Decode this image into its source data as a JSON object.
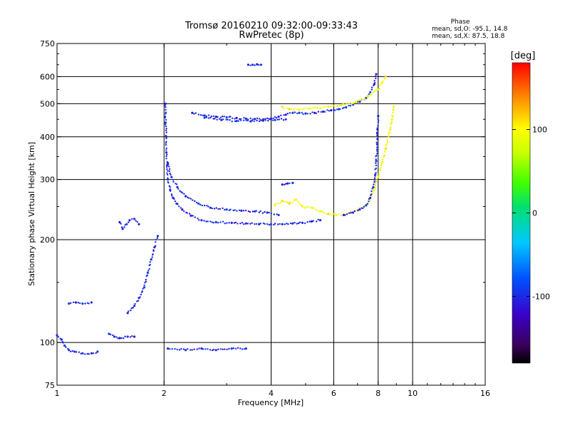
{
  "header": {
    "title_line1": "Tromsø 20160210 09:32:00-09:33:43",
    "title_line2": "RwPretec (8p)"
  },
  "phase_info": {
    "heading": "Phase",
    "line_o": "mean, sd,O: -95.1, 14.8",
    "line_x": "mean, sd,X:  87.5, 18.8"
  },
  "colorbar": {
    "unit_label": "[deg]",
    "range": [
      -180,
      180
    ],
    "ticks": [
      "100",
      "0",
      "-100"
    ],
    "tick_values": [
      100,
      0,
      -100
    ]
  },
  "chart_data": {
    "type": "scatter",
    "xlabel": "Frequency [MHz]",
    "ylabel": "Stationary phase Virtual Height [km]",
    "x_scale": "log",
    "y_scale": "log",
    "xlim": [
      1,
      16
    ],
    "ylim": [
      75,
      750
    ],
    "x_ticks": [
      {
        "value": 1,
        "label": "1"
      },
      {
        "value": 2,
        "label": "2"
      },
      {
        "value": 4,
        "label": "4"
      },
      {
        "value": 6,
        "label": "6"
      },
      {
        "value": 8,
        "label": "8"
      },
      {
        "value": 10,
        "label": "10"
      },
      {
        "value": 16,
        "label": "16"
      }
    ],
    "y_ticks": [
      {
        "value": 75,
        "label": "75"
      },
      {
        "value": 100,
        "label": "100"
      },
      {
        "value": 200,
        "label": "200"
      },
      {
        "value": 300,
        "label": "300"
      },
      {
        "value": 400,
        "label": "400"
      },
      {
        "value": 500,
        "label": "500"
      },
      {
        "value": 600,
        "label": "600"
      },
      {
        "value": 750,
        "label": "750"
      }
    ],
    "x_gridlines": [
      2,
      4,
      6,
      8,
      10
    ],
    "y_gridlines": [
      100,
      200,
      300,
      400,
      500,
      600
    ],
    "grid": true,
    "color_scale": "phase_deg",
    "traces": [
      {
        "phase": -100,
        "points": [
          [
            2.02,
            500
          ],
          [
            2.02,
            440
          ],
          [
            2.03,
            400
          ],
          [
            2.03,
            360
          ],
          [
            2.04,
            330
          ],
          [
            2.05,
            300
          ],
          [
            2.08,
            280
          ],
          [
            2.12,
            265
          ],
          [
            2.17,
            255
          ],
          [
            2.25,
            245
          ],
          [
            2.38,
            235
          ],
          [
            2.55,
            228
          ],
          [
            2.8,
            225
          ],
          [
            3.1,
            224
          ],
          [
            3.4,
            223
          ],
          [
            3.7,
            222
          ],
          [
            4.0,
            222
          ],
          [
            4.3,
            222
          ],
          [
            4.6,
            223
          ],
          [
            4.9,
            224
          ],
          [
            5.2,
            226
          ],
          [
            5.5,
            228
          ]
        ]
      },
      {
        "phase": -100,
        "points": [
          [
            2.05,
            335
          ],
          [
            2.1,
            305
          ],
          [
            2.18,
            285
          ],
          [
            2.3,
            268
          ],
          [
            2.5,
            255
          ],
          [
            2.7,
            248
          ],
          [
            3.0,
            245
          ],
          [
            3.3,
            243
          ],
          [
            3.6,
            242
          ],
          [
            3.9,
            240
          ],
          [
            4.2,
            236
          ]
        ]
      },
      {
        "phase": 100,
        "points": [
          [
            4.1,
            252
          ],
          [
            4.3,
            260
          ],
          [
            4.5,
            255
          ],
          [
            4.7,
            262
          ],
          [
            4.9,
            250
          ],
          [
            5.2,
            248
          ],
          [
            5.5,
            242
          ],
          [
            5.8,
            238
          ],
          [
            6.1,
            236
          ],
          [
            6.4,
            237
          ],
          [
            6.7,
            240
          ],
          [
            7.0,
            244
          ],
          [
            7.3,
            250
          ],
          [
            7.6,
            262
          ],
          [
            7.8,
            280
          ],
          [
            8.0,
            305
          ],
          [
            8.2,
            335
          ],
          [
            8.4,
            370
          ],
          [
            8.6,
            410
          ],
          [
            8.75,
            450
          ],
          [
            8.85,
            490
          ]
        ]
      },
      {
        "phase": -100,
        "points": [
          [
            6.4,
            236
          ],
          [
            6.8,
            240
          ],
          [
            7.1,
            245
          ],
          [
            7.4,
            252
          ],
          [
            7.6,
            265
          ],
          [
            7.75,
            285
          ],
          [
            7.85,
            310
          ],
          [
            7.9,
            340
          ],
          [
            7.95,
            380
          ],
          [
            7.97,
            420
          ],
          [
            8.0,
            460
          ]
        ]
      },
      {
        "phase": -100,
        "points": [
          [
            2.4,
            470
          ],
          [
            2.6,
            462
          ],
          [
            2.8,
            458
          ],
          [
            3.0,
            456
          ],
          [
            3.2,
            454
          ],
          [
            3.4,
            452
          ],
          [
            3.6,
            451
          ],
          [
            3.8,
            450
          ],
          [
            4.0,
            452
          ],
          [
            4.2,
            458
          ],
          [
            4.4,
            464
          ],
          [
            4.6,
            470
          ],
          [
            4.8,
            470
          ],
          [
            5.0,
            468
          ],
          [
            5.3,
            470
          ],
          [
            5.6,
            474
          ],
          [
            5.9,
            478
          ],
          [
            6.2,
            482
          ],
          [
            6.5,
            488
          ],
          [
            6.8,
            497
          ],
          [
            7.1,
            507
          ],
          [
            7.4,
            520
          ],
          [
            7.6,
            540
          ],
          [
            7.8,
            570
          ],
          [
            7.9,
            610
          ]
        ]
      },
      {
        "phase": -100,
        "points": [
          [
            2.6,
            455
          ],
          [
            2.9,
            448
          ],
          [
            3.2,
            445
          ],
          [
            3.5,
            444
          ],
          [
            3.8,
            446
          ],
          [
            4.1,
            448
          ],
          [
            4.4,
            450
          ]
        ]
      },
      {
        "phase": 100,
        "points": [
          [
            4.3,
            490
          ],
          [
            4.5,
            482
          ],
          [
            4.8,
            480
          ],
          [
            5.1,
            484
          ],
          [
            5.4,
            486
          ],
          [
            5.8,
            490
          ],
          [
            6.3,
            495
          ],
          [
            6.9,
            505
          ],
          [
            7.5,
            525
          ],
          [
            8.0,
            550
          ],
          [
            8.2,
            575
          ],
          [
            8.4,
            600
          ]
        ]
      },
      {
        "phase": -100,
        "points": [
          [
            1.5,
            225
          ],
          [
            1.53,
            215
          ],
          [
            1.57,
            222
          ],
          [
            1.6,
            228
          ],
          [
            1.65,
            230
          ],
          [
            1.7,
            222
          ]
        ]
      },
      {
        "phase": -100,
        "points": [
          [
            1.92,
            205
          ],
          [
            1.88,
            190
          ],
          [
            1.84,
            175
          ],
          [
            1.8,
            160
          ],
          [
            1.76,
            145
          ],
          [
            1.7,
            135
          ],
          [
            1.65,
            128
          ],
          [
            1.58,
            122
          ]
        ]
      },
      {
        "phase": -100,
        "points": [
          [
            1.0,
            105
          ],
          [
            1.03,
            102
          ],
          [
            1.05,
            98
          ],
          [
            1.08,
            95
          ],
          [
            1.12,
            94
          ],
          [
            1.18,
            93
          ],
          [
            1.25,
            93
          ],
          [
            1.3,
            94
          ]
        ]
      },
      {
        "phase": -100,
        "points": [
          [
            1.08,
            130
          ],
          [
            1.13,
            131
          ],
          [
            1.18,
            130
          ],
          [
            1.25,
            131
          ]
        ]
      },
      {
        "phase": -100,
        "points": [
          [
            1.4,
            106
          ],
          [
            1.45,
            104
          ],
          [
            1.5,
            103
          ],
          [
            1.58,
            104
          ],
          [
            1.65,
            104
          ]
        ]
      },
      {
        "phase": -100,
        "points": [
          [
            3.45,
            650
          ],
          [
            3.55,
            650
          ],
          [
            3.65,
            652
          ],
          [
            3.75,
            650
          ]
        ]
      },
      {
        "phase": -100,
        "points": [
          [
            2.05,
            96
          ],
          [
            2.3,
            95
          ],
          [
            2.55,
            96
          ],
          [
            2.8,
            95
          ],
          [
            3.1,
            96
          ],
          [
            3.4,
            96
          ]
        ]
      },
      {
        "phase": -100,
        "points": [
          [
            4.3,
            290
          ],
          [
            4.45,
            292
          ],
          [
            4.6,
            293
          ]
        ]
      }
    ]
  }
}
